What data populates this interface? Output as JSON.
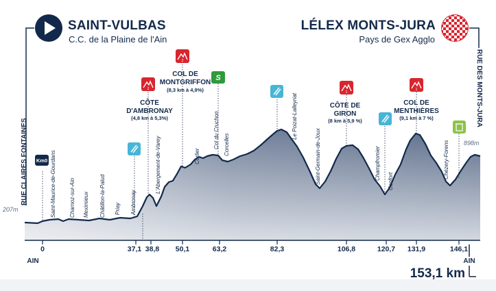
{
  "start": {
    "name": "SAINT-VULBAS",
    "sub": "C.C. de la Plaine de l'Ain"
  },
  "finish": {
    "name": "LÉLEX MONTS-JURA",
    "sub": "Pays de Gex Agglo"
  },
  "start_street": "RUE CLAIRES FONTAINES",
  "finish_street": "RUE DES MONTS-JURA",
  "start_alt": "207m",
  "finish_alt": "898m",
  "axis_left_label": "AIN",
  "axis_right_label": "AIN",
  "total_distance": "153,1 km",
  "km_ticks": [
    "0",
    "37,1",
    "38,8",
    "50,1",
    "63,2",
    "82,3",
    "106,8",
    "120,7",
    "131,9",
    "146,1"
  ],
  "km0_label": "Km0",
  "sprint_label": "S",
  "climbs": [
    {
      "name": "CÔTE D'AMBRONAY",
      "line1": "CÔTE",
      "line2": "D'AMBRONAY",
      "detail": "(4,8 km à 5,3%)",
      "category": "2"
    },
    {
      "name": "COL DE MONTGRIFFON",
      "line1": "COL DE",
      "line2": "MONTGRIFFON",
      "detail": "(8,3 km à 4,9%)",
      "category": "2"
    },
    {
      "name": "CÔTE DE GIRON",
      "line1": "CÔTE DE",
      "line2": "GIRON",
      "detail": "(8 km à 5,9 %)",
      "category": "1"
    },
    {
      "name": "COL DE MENTHIÈRES",
      "line1": "COL DE",
      "line2": "MENTHIÈRES",
      "detail": "(9,1 km à 7 %)",
      "category": "1"
    }
  ],
  "places": [
    "Saint-Maurice-de-Gourdans",
    "Charnoz-sur-Ain",
    "Meximieux",
    "Châtillon-la-Palud",
    "Priay",
    "Ambronay",
    "L'Abergement-de-Varey",
    "Corlier",
    "Col du Cruchon",
    "Corcelles",
    "Le Poizat-Lalleyriat",
    "Saint-Germain-de-Joux",
    "Champfromier",
    "Confort",
    "Chézery-Forens"
  ],
  "colors": {
    "navy": "#13294b",
    "profile_top": "#5b6c89",
    "profile_bottom": "#c6ccd7",
    "climb_red": "#d8262e",
    "sprint_green": "#2e9a3c",
    "feed_cyan": "#47b5d6",
    "feed_green": "#8bc34a"
  }
}
